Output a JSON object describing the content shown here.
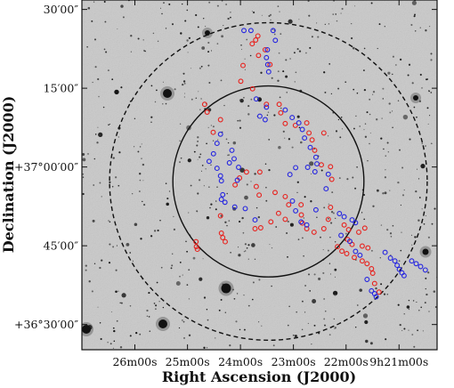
{
  "chart_data": {
    "type": "scatter",
    "xlabel": "Right Ascension (J2000)",
    "ylabel": "Declination (J2000)",
    "x_axis_inverted": true,
    "xlim_hours": [
      9.45,
      9.338
    ],
    "ylim_deg": [
      36.42,
      37.53
    ],
    "x_ticks": [
      {
        "value_hours": 9.4333,
        "label": "26m00s"
      },
      {
        "value_hours": 9.4167,
        "label": "25m00s"
      },
      {
        "value_hours": 9.4,
        "label": "24m00s"
      },
      {
        "value_hours": 9.3833,
        "label": "23m00s"
      },
      {
        "value_hours": 9.3667,
        "label": "22m00s"
      },
      {
        "value_hours": 9.35,
        "label": "9h21m00s"
      }
    ],
    "y_ticks": [
      {
        "value_deg": 37.5,
        "label": "30′00″"
      },
      {
        "value_deg": 37.25,
        "label": "15′00″"
      },
      {
        "value_deg": 37.0,
        "label": "+37°00′00″"
      },
      {
        "value_deg": 36.75,
        "label": "45′00″"
      },
      {
        "value_deg": 36.5,
        "label": "+36°30′00″"
      }
    ],
    "circles": [
      {
        "style": "solid",
        "center_ra_hours": 9.3912,
        "center_dec_deg": 36.954,
        "radius_deg": 0.303
      },
      {
        "style": "dashed",
        "center_ra_hours": 9.3912,
        "center_dec_deg": 36.954,
        "radius_deg": 0.504
      }
    ],
    "series": [
      {
        "color": "#e8201c",
        "points": [
          [
            9.3963,
            37.391
          ],
          [
            9.3952,
            37.403
          ],
          [
            9.3945,
            37.416
          ],
          [
            9.3992,
            37.322
          ],
          [
            9.3943,
            37.354
          ],
          [
            9.3922,
            37.372
          ],
          [
            9.3907,
            37.325
          ],
          [
            9.4113,
            37.199
          ],
          [
            9.4105,
            37.174
          ],
          [
            9.4086,
            37.11
          ],
          [
            9.4063,
            37.15
          ],
          [
            9.3999,
            37.272
          ],
          [
            9.3962,
            37.248
          ],
          [
            9.3918,
            37.199
          ],
          [
            9.3878,
            37.199
          ],
          [
            9.3873,
            37.172
          ],
          [
            9.3859,
            37.138
          ],
          [
            9.3827,
            37.132
          ],
          [
            9.3791,
            37.14
          ],
          [
            9.3784,
            37.108
          ],
          [
            9.3774,
            37.086
          ],
          [
            9.3766,
            37.053
          ],
          [
            9.3737,
            37.108
          ],
          [
            9.3745,
            37.007
          ],
          [
            9.3716,
            37.001
          ],
          [
            9.3712,
            36.961
          ],
          [
            9.3716,
            36.872
          ],
          [
            9.3723,
            36.834
          ],
          [
            9.3737,
            36.804
          ],
          [
            9.3768,
            36.793
          ],
          [
            9.3939,
            36.984
          ],
          [
            9.3981,
            36.984
          ],
          [
            9.4003,
            36.965
          ],
          [
            9.4017,
            36.943
          ],
          [
            9.395,
            36.938
          ],
          [
            9.3941,
            36.911
          ],
          [
            9.3891,
            36.919
          ],
          [
            9.3859,
            36.906
          ],
          [
            9.3848,
            36.88
          ],
          [
            9.388,
            36.853
          ],
          [
            9.3859,
            36.834
          ],
          [
            9.3904,
            36.826
          ],
          [
            9.3936,
            36.807
          ],
          [
            9.3954,
            36.804
          ],
          [
            9.3809,
            36.88
          ],
          [
            9.3808,
            36.848
          ],
          [
            9.3805,
            36.822
          ],
          [
            9.3791,
            36.804
          ],
          [
            9.4063,
            36.845
          ],
          [
            9.406,
            36.79
          ],
          [
            9.4056,
            36.776
          ],
          [
            9.4048,
            36.763
          ],
          [
            9.414,
            36.763
          ],
          [
            9.4139,
            36.747
          ],
          [
            9.4136,
            36.739
          ],
          [
            9.3673,
            36.816
          ],
          [
            9.3659,
            36.801
          ],
          [
            9.3627,
            36.793
          ],
          [
            9.3608,
            36.806
          ],
          [
            9.3662,
            36.77
          ],
          [
            9.3648,
            36.754
          ],
          [
            9.3616,
            36.749
          ],
          [
            9.3598,
            36.743
          ],
          [
            9.3694,
            36.747
          ],
          [
            9.368,
            36.733
          ],
          [
            9.3665,
            36.725
          ],
          [
            9.3641,
            36.713
          ],
          [
            9.3616,
            36.702
          ],
          [
            9.3601,
            36.693
          ],
          [
            9.3587,
            36.677
          ],
          [
            9.3583,
            36.663
          ],
          [
            9.3577,
            36.63
          ],
          [
            9.3563,
            36.603
          ]
        ]
      },
      {
        "color": "#2424e0",
        "points": [
          [
            9.3989,
            37.433
          ],
          [
            9.3967,
            37.433
          ],
          [
            9.3897,
            37.433
          ],
          [
            9.389,
            37.402
          ],
          [
            9.3915,
            37.372
          ],
          [
            9.3918,
            37.347
          ],
          [
            9.3914,
            37.325
          ],
          [
            9.3911,
            37.302
          ],
          [
            9.395,
            37.216
          ],
          [
            9.3918,
            37.19
          ],
          [
            9.3922,
            37.15
          ],
          [
            9.3939,
            37.161
          ],
          [
            9.3859,
            37.181
          ],
          [
            9.3837,
            37.157
          ],
          [
            9.3816,
            37.14
          ],
          [
            9.3805,
            37.119
          ],
          [
            9.3798,
            37.092
          ],
          [
            9.378,
            37.062
          ],
          [
            9.3762,
            37.031
          ],
          [
            9.4063,
            37.104
          ],
          [
            9.4074,
            37.075
          ],
          [
            9.4085,
            37.042
          ],
          [
            9.4099,
            37.018
          ],
          [
            9.4027,
            37.053
          ],
          [
            9.402,
            37.026
          ],
          [
            9.4006,
            36.999
          ],
          [
            9.4074,
            36.996
          ],
          [
            9.4063,
            36.972
          ],
          [
            9.406,
            36.956
          ],
          [
            9.4035,
            37.013
          ],
          [
            9.401,
            36.958
          ],
          [
            9.4056,
            36.912
          ],
          [
            9.406,
            36.897
          ],
          [
            9.4049,
            36.888
          ],
          [
            9.4018,
            36.873
          ],
          [
            9.3985,
            36.868
          ],
          [
            9.3954,
            36.832
          ],
          [
            9.3836,
            36.892
          ],
          [
            9.3826,
            36.861
          ],
          [
            9.3809,
            36.826
          ],
          [
            9.3791,
            36.816
          ],
          [
            9.3762,
            36.864
          ],
          [
            9.373,
            36.931
          ],
          [
            9.3723,
            36.977
          ],
          [
            9.3765,
            36.985
          ],
          [
            9.3759,
            37.01
          ],
          [
            9.3788,
            36.999
          ],
          [
            9.3826,
            36.998
          ],
          [
            9.3844,
            36.976
          ],
          [
            9.3688,
            36.852
          ],
          [
            9.3673,
            36.842
          ],
          [
            9.3648,
            36.832
          ],
          [
            9.3637,
            36.823
          ],
          [
            9.3683,
            36.783
          ],
          [
            9.3655,
            36.764
          ],
          [
            9.3637,
            36.732
          ],
          [
            9.3623,
            36.72
          ],
          [
            9.3544,
            36.729
          ],
          [
            9.3527,
            36.711
          ],
          [
            9.3513,
            36.702
          ],
          [
            9.3506,
            36.688
          ],
          [
            9.3499,
            36.675
          ],
          [
            9.3491,
            36.664
          ],
          [
            9.3484,
            36.655
          ],
          [
            9.346,
            36.702
          ],
          [
            9.3446,
            36.693
          ],
          [
            9.3432,
            36.684
          ],
          [
            9.3417,
            36.673
          ],
          [
            9.3601,
            36.643
          ],
          [
            9.3587,
            36.607
          ],
          [
            9.3577,
            36.598
          ],
          [
            9.3572,
            36.588
          ]
        ]
      }
    ]
  }
}
